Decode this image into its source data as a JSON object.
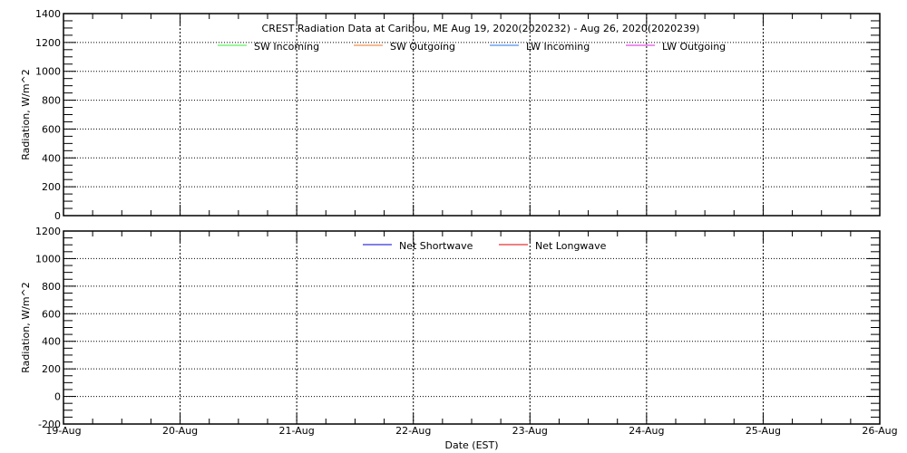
{
  "chart_data": [
    {
      "type": "line",
      "title": "CREST Radiation Data at Caribou, ME   Aug 19, 2020(2020232) - Aug 26, 2020(2020239)",
      "xlabel": "",
      "ylabel": "Radiation, W/m^2",
      "ylim": [
        0,
        1400
      ],
      "yticks": [
        "0",
        "200",
        "400",
        "600",
        "800",
        "1000",
        "1200",
        "1400"
      ],
      "xlim": [
        "2020-08-19",
        "2020-08-26"
      ],
      "grid": true,
      "legend_position": "top-center",
      "series": [
        {
          "name": "SW Incoming",
          "color": "#33ee33",
          "values": []
        },
        {
          "name": "SW Outgoing",
          "color": "#ee7722",
          "values": []
        },
        {
          "name": "LW Incoming",
          "color": "#2277ee",
          "values": []
        },
        {
          "name": "LW Outgoing",
          "color": "#dd22dd",
          "values": []
        }
      ]
    },
    {
      "type": "line",
      "xlabel": "Date (EST)",
      "ylabel": "Radiation, W/m^2",
      "ylim": [
        -200,
        1200
      ],
      "yticks": [
        "-200",
        "0",
        "200",
        "400",
        "600",
        "800",
        "1000",
        "1200"
      ],
      "xlim": [
        "2020-08-19",
        "2020-08-26"
      ],
      "xticks": [
        "19-Aug",
        "20-Aug",
        "21-Aug",
        "22-Aug",
        "23-Aug",
        "24-Aug",
        "25-Aug",
        "26-Aug"
      ],
      "grid": true,
      "legend_position": "top-center",
      "series": [
        {
          "name": "Net Shortwave",
          "color": "#0000cc",
          "values": []
        },
        {
          "name": "Net Longwave",
          "color": "#dd0000",
          "values": []
        }
      ]
    }
  ]
}
